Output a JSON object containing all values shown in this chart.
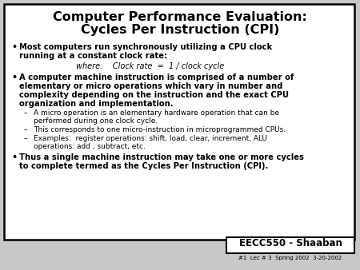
{
  "title_line1": "Computer Performance Evaluation:",
  "title_line2": "Cycles Per Instruction (CPI)",
  "bg_color": "#c8c8c8",
  "border_color": "#000000",
  "text_color": "#000000",
  "bullet1_line1": "Most computers run synchronously utilizing a CPU clock",
  "bullet1_line2": "running at a constant clock rate:",
  "where_line": "where:    Clock rate  =  1 / clock cycle",
  "bullet2_line1": "A computer machine instruction is comprised of a number of",
  "bullet2_line2": "elementary or micro operations which vary in number and",
  "bullet2_line3": "complexity depending on the instruction and the exact CPU",
  "bullet2_line4": "organization and implementation.",
  "sub1_line1": "A micro operation is an elementary hardware operation that can be",
  "sub1_line2": "performed during one clock cycle.",
  "sub2_line1": "This corresponds to one micro-instruction in microprogrammed CPUs.",
  "sub3_line1": "Examples:  register operations: shift, load, clear, increment, ALU",
  "sub3_line2": "operations: add , subtract, etc.",
  "bullet3_line1": "Thus a single machine instruction may take one or more cycles",
  "bullet3_line2": "to complete termed as the Cycles Per Instruction (CPI).",
  "footer_main": "EECC550 - Shaaban",
  "footer_sub": "#1  Lec # 3  Spring 2002  3-20-2002"
}
